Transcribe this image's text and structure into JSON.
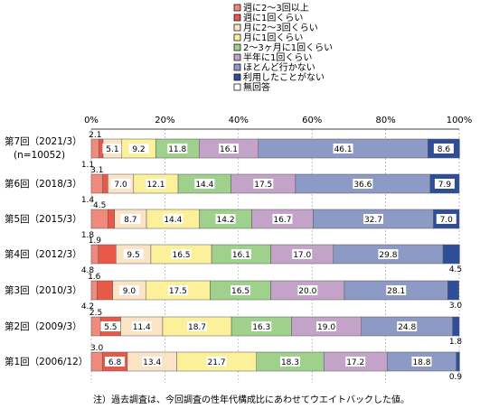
{
  "chart_data": {
    "type": "bar",
    "orientation": "horizontal-stacked-100",
    "xlim": [
      0,
      100
    ],
    "x_ticks": [
      "0%",
      "20%",
      "40%",
      "60%",
      "80%",
      "100%"
    ],
    "legend_position": "top-right",
    "grid": true,
    "categories": [
      "第7回（2021/3）",
      "第6回（2018/3）",
      "第5回（2015/3）",
      "第4回（2012/3）",
      "第3回（2010/3）",
      "第2回（2009/3）",
      "第1回（2006/12）"
    ],
    "category_sublabels": [
      "(n=10052)",
      "",
      "",
      "",
      "",
      "",
      ""
    ],
    "series": [
      {
        "name": "週に2～3回以上",
        "color": "#f08a7c",
        "values": [
          2.1,
          3.1,
          4.5,
          1.9,
          1.6,
          2.5,
          3.0
        ]
      },
      {
        "name": "週に1回くらい",
        "color": "#e8594a",
        "values": [
          1.1,
          1.4,
          1.8,
          4.8,
          4.2,
          5.5,
          6.8
        ]
      },
      {
        "name": "月に2～3回くらい",
        "color": "#fbe3c6",
        "values": [
          5.1,
          7.0,
          8.7,
          9.5,
          9.0,
          11.4,
          13.4
        ]
      },
      {
        "name": "月に1回くらい",
        "color": "#fdf09a",
        "values": [
          9.2,
          12.1,
          14.4,
          16.5,
          17.5,
          18.7,
          21.7
        ]
      },
      {
        "name": "2～3ヶ月に1回くらい",
        "color": "#9fd18d",
        "values": [
          11.8,
          14.4,
          14.2,
          16.1,
          16.5,
          16.3,
          18.3
        ]
      },
      {
        "name": "半年に1回くらい",
        "color": "#c4a3c8",
        "values": [
          16.1,
          17.5,
          16.7,
          17.0,
          20.0,
          19.0,
          17.2
        ]
      },
      {
        "name": "ほとんど行かない",
        "color": "#8e9ac6",
        "values": [
          46.1,
          36.6,
          32.7,
          29.8,
          28.1,
          24.8,
          18.8
        ]
      },
      {
        "name": "利用したことがない",
        "color": "#2e4f98",
        "values": [
          8.6,
          7.9,
          7.0,
          4.5,
          3.0,
          1.8,
          0.9
        ]
      },
      {
        "name": "無回答",
        "color": "#ffffff",
        "values": [
          0,
          0,
          0,
          0,
          0,
          0,
          0
        ]
      }
    ]
  },
  "note": "注）過去調査は、今回調査の性年代構成比にあわせてウエイトバックした値。"
}
